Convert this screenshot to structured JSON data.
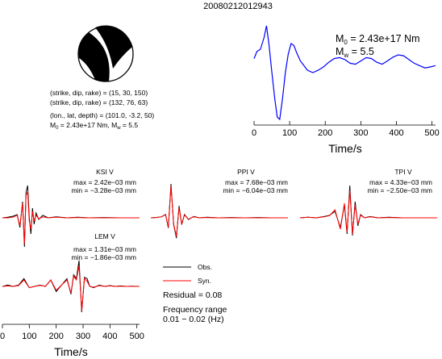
{
  "title": "20080212012943",
  "source_params": {
    "line1": "(strike, dip, rake) = (15, 30, 150)",
    "line2": "(strike, dip, rake) = (132, 76, 63)",
    "line3": "(lon., lat, depth) = (101.0, -3.2, 50)",
    "line4_prefix": "M",
    "line4_sub": "0",
    "line4_value": " = 2.43e+17 Nm, M",
    "line4_sub2": "w",
    "line4_tail": " = 5.5"
  },
  "stf_annotation": {
    "m0_prefix": "M",
    "m0_sub": "0",
    "m0_value": " = 2.43e+17 Nm",
    "mw_prefix": "M",
    "mw_sub": "w",
    "mw_value": " = 5.5"
  },
  "legend": {
    "obs": "Obs.",
    "syn": "Syn.",
    "residual": "Residual = 0.08",
    "freq_title": "Frequency range",
    "freq_value": "0.01 − 0.02 (Hz)"
  },
  "colors": {
    "stf_line": "#0000ff",
    "obs_line": "#000000",
    "syn_line": "#ff0000"
  },
  "chart_data": [
    {
      "type": "line",
      "name": "source-time-function",
      "xlabel": "Time/s",
      "ylabel": "",
      "xlim": [
        0,
        510
      ],
      "xticks": [
        0,
        100,
        200,
        300,
        400,
        500
      ],
      "x": [
        0,
        8,
        18,
        28,
        35,
        42,
        50,
        58,
        65,
        72,
        80,
        88,
        96,
        104,
        112,
        120,
        130,
        140,
        150,
        165,
        180,
        195,
        210,
        225,
        240,
        255,
        270,
        285,
        300,
        315,
        330,
        345,
        360,
        375,
        390,
        405,
        420,
        435,
        450,
        465,
        480,
        495,
        510
      ],
      "y": [
        0.3,
        0.45,
        0.5,
        0.75,
        1.0,
        0.6,
        0.0,
        -0.55,
        -0.95,
        -1.0,
        -0.55,
        0.0,
        0.4,
        0.62,
        0.58,
        0.42,
        0.25,
        0.15,
        0.05,
        0.0,
        0.05,
        0.12,
        0.22,
        0.3,
        0.32,
        0.28,
        0.2,
        0.18,
        0.25,
        0.32,
        0.3,
        0.22,
        0.18,
        0.25,
        0.33,
        0.38,
        0.36,
        0.28,
        0.2,
        0.15,
        0.1,
        0.12,
        0.15
      ]
    },
    {
      "type": "line",
      "name": "station-traces",
      "xlabel": "Time/s",
      "ylabel": "",
      "xlim": [
        0,
        510
      ],
      "xticks": [
        0,
        100,
        200,
        300,
        400,
        500
      ],
      "stations": [
        {
          "label": "KSI V",
          "max": "max = 2.42e−03 mm",
          "min": "min = −3.28e−03 mm",
          "x": [
            0,
            20,
            40,
            55,
            65,
            75,
            82,
            88,
            94,
            100,
            106,
            112,
            118,
            125,
            135,
            150,
            170,
            200,
            240,
            280,
            320,
            380,
            440,
            510
          ],
          "obs": [
            0.0,
            0.02,
            0.05,
            0.1,
            -0.3,
            0.5,
            -0.9,
            0.8,
            1.0,
            0.0,
            -0.5,
            0.3,
            -0.2,
            0.15,
            -0.05,
            0.08,
            0.0,
            0.03,
            0.0,
            0.02,
            0.0,
            0.01,
            0.0,
            0.0
          ],
          "syn": [
            0.0,
            0.0,
            0.02,
            0.08,
            -0.25,
            0.45,
            -0.8,
            0.7,
            0.8,
            -0.1,
            -0.35,
            0.2,
            -0.1,
            0.08,
            -0.03,
            0.03,
            0.0,
            0.02,
            0.0,
            0.01,
            0.0,
            0.0,
            0.0,
            0.0
          ]
        },
        {
          "label": "PPI V",
          "max": "max = 7.68e−03 mm",
          "min": "min = −6.04e−03 mm",
          "x": [
            0,
            20,
            40,
            55,
            65,
            75,
            85,
            95,
            105,
            115,
            125,
            140,
            160,
            180,
            210,
            250,
            300,
            350,
            400,
            450,
            510
          ],
          "obs": [
            0.0,
            0.01,
            0.03,
            0.1,
            -0.3,
            1.0,
            -0.2,
            -0.6,
            0.35,
            -0.2,
            0.1,
            -0.05,
            0.04,
            0.0,
            0.02,
            0.0,
            0.01,
            0.0,
            0.01,
            0.0,
            0.0
          ],
          "syn": [
            0.0,
            0.01,
            0.03,
            0.09,
            -0.28,
            0.95,
            -0.18,
            -0.55,
            0.3,
            -0.18,
            0.08,
            -0.04,
            0.03,
            0.0,
            0.01,
            0.0,
            0.0,
            0.0,
            0.0,
            0.0,
            0.0
          ]
        },
        {
          "label": "TPI V",
          "max": "max = 4.33e−03 mm",
          "min": "min = −2.50e−03 mm",
          "x": [
            0,
            30,
            60,
            90,
            110,
            130,
            150,
            165,
            175,
            185,
            195,
            205,
            215,
            225,
            240,
            260,
            290,
            330,
            380,
            440,
            510
          ],
          "obs": [
            0.0,
            0.02,
            0.0,
            0.04,
            0.08,
            0.2,
            -0.3,
            0.4,
            -0.5,
            1.0,
            -0.55,
            0.5,
            -0.25,
            0.1,
            0.0,
            0.04,
            0.0,
            0.02,
            0.0,
            0.0,
            0.0
          ],
          "syn": [
            0.0,
            0.02,
            0.0,
            0.03,
            0.07,
            0.25,
            -0.35,
            0.45,
            -0.45,
            0.85,
            -0.5,
            0.4,
            -0.2,
            0.08,
            0.0,
            0.03,
            0.0,
            0.01,
            0.0,
            0.0,
            0.0
          ]
        },
        {
          "label": "LEM V",
          "max": "max = 1.31e−03 mm",
          "min": "min = −1.86e−03 mm",
          "x": [
            0,
            20,
            40,
            60,
            80,
            100,
            120,
            140,
            160,
            180,
            200,
            220,
            240,
            255,
            265,
            275,
            285,
            295,
            305,
            315,
            325,
            340,
            360,
            380,
            400,
            420,
            440,
            460,
            480,
            510
          ],
          "obs": [
            0.0,
            0.05,
            0.0,
            0.05,
            0.3,
            -0.05,
            0.0,
            0.05,
            0.0,
            0.25,
            -0.2,
            0.05,
            0.3,
            -0.3,
            0.45,
            0.3,
            1.0,
            -1.0,
            0.35,
            0.3,
            0.0,
            -0.05,
            0.05,
            0.0,
            0.03,
            0.0,
            0.02,
            0.0,
            0.01,
            0.0
          ],
          "syn": [
            0.0,
            0.02,
            0.0,
            0.03,
            0.25,
            -0.05,
            0.0,
            0.04,
            0.0,
            0.25,
            -0.15,
            0.05,
            0.25,
            -0.25,
            0.4,
            0.25,
            0.8,
            -0.95,
            0.3,
            0.2,
            0.0,
            -0.03,
            0.03,
            0.0,
            0.02,
            0.0,
            0.01,
            0.0,
            0.0,
            0.0
          ]
        }
      ]
    }
  ]
}
